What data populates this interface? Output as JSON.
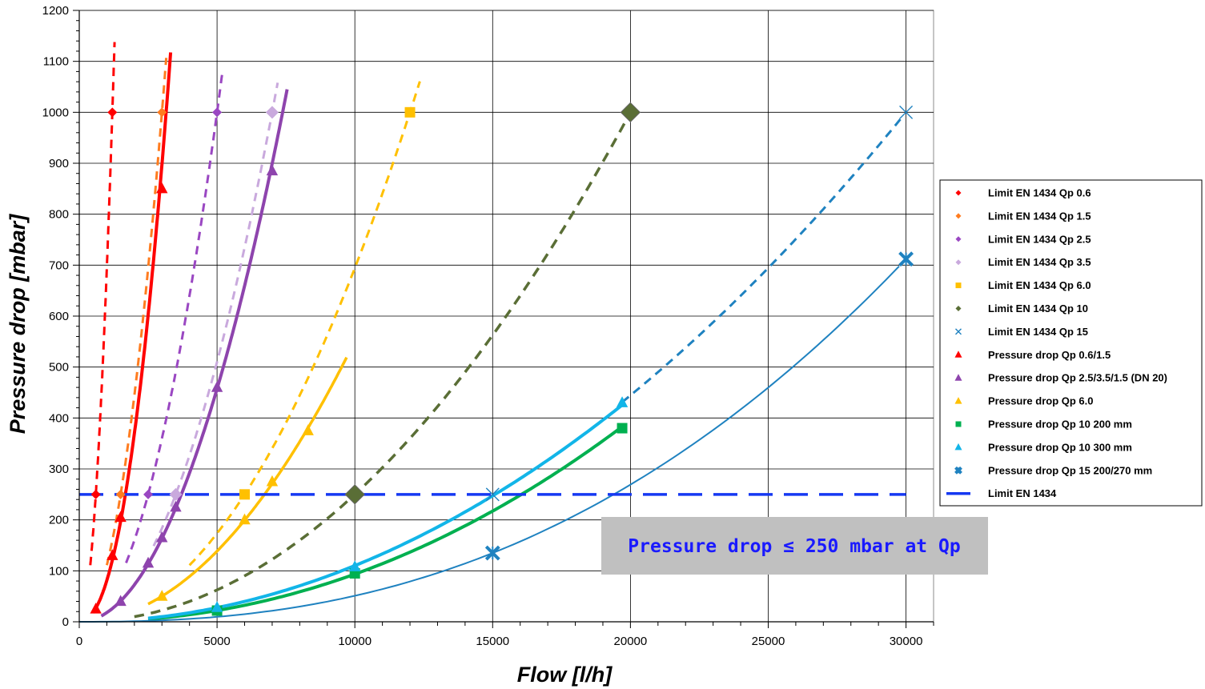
{
  "chart_data": {
    "type": "scatter",
    "xlabel": "Flow [l/h]",
    "ylabel": "Pressure drop [mbar]",
    "xlim": [
      0,
      31000
    ],
    "ylim": [
      0,
      1200
    ],
    "x_ticks": [
      "0",
      "5000",
      "10000",
      "15000",
      "20000",
      "25000",
      "30000"
    ],
    "y_ticks": [
      "0",
      "100",
      "200",
      "300",
      "400",
      "500",
      "600",
      "700",
      "800",
      "900",
      "1000",
      "1100",
      "1200"
    ],
    "grid": true,
    "legend_position": "right",
    "annotation": {
      "text": "Pressure drop ≤ 250 mbar at Qp",
      "color": "#1a1aff",
      "background": "#c0c0c0"
    },
    "series": [
      {
        "name": "Limit EN 1434 Qp 0.6",
        "color": "#ff0000",
        "marker": "diamond",
        "marker_size": 6,
        "points": [
          [
            600,
            250
          ],
          [
            1200,
            1000
          ]
        ],
        "line": {
          "dash": "dashed",
          "width": 3,
          "x_range": [
            400,
            1280
          ],
          "y_max": 1175
        }
      },
      {
        "name": "Limit EN 1434 Qp 1.5",
        "color": "#ff7c1f",
        "marker": "diamond",
        "marker_size": 6,
        "points": [
          [
            1500,
            250
          ],
          [
            3000,
            1000
          ]
        ],
        "line": {
          "dash": "dashed",
          "width": 3,
          "x_range": [
            1000,
            3250
          ],
          "y_max": 1120
        }
      },
      {
        "name": "Limit EN 1434 Qp 2.5",
        "color": "#9a47c2",
        "marker": "diamond",
        "marker_size": 6,
        "points": [
          [
            2500,
            250
          ],
          [
            5000,
            1000
          ]
        ],
        "line": {
          "dash": "dashed",
          "width": 3,
          "x_range": [
            1700,
            5250
          ],
          "y_max": 1085
        }
      },
      {
        "name": "Limit EN 1434 Qp 3.5",
        "color": "#c9a9dd",
        "marker": "diamond",
        "marker_size": 8,
        "points": [
          [
            3500,
            250
          ],
          [
            7000,
            1000
          ]
        ],
        "line": {
          "dash": "dashed",
          "width": 3,
          "x_range": [
            2700,
            7200
          ],
          "y_max": 1060
        }
      },
      {
        "name": "Limit EN 1434 Qp 6.0",
        "color": "#ffc000",
        "marker": "square",
        "marker_size": 13,
        "points": [
          [
            6000,
            250
          ],
          [
            12000,
            1000
          ]
        ],
        "line": {
          "dash": "dashed",
          "width": 3,
          "x_range": [
            4000,
            12500
          ],
          "y_max": 1070
        }
      },
      {
        "name": "Limit EN 1434 Qp 10",
        "color": "#5a6e36",
        "marker": "diamond",
        "marker_size": 12,
        "points": [
          [
            10000,
            250
          ],
          [
            20000,
            1000
          ]
        ],
        "line": {
          "dash": "dashed",
          "width": 3.5,
          "x_range": [
            2000,
            20000
          ],
          "y_max": 1000
        }
      },
      {
        "name": "Limit EN 1434 Qp 15",
        "color": "#1f82c0",
        "marker": "x",
        "marker_size": 8,
        "points": [
          [
            15000,
            250
          ],
          [
            30000,
            1000
          ]
        ],
        "line": {
          "dash": "dashed",
          "width": 3,
          "x_range": [
            19700,
            30000
          ],
          "y_max": 1000
        }
      },
      {
        "name": "Pressure drop Qp 0.6/1.5",
        "color": "#ff0000",
        "marker": "triangle",
        "marker_size": 8,
        "points": [
          [
            600,
            25
          ],
          [
            1200,
            130
          ],
          [
            1500,
            205
          ],
          [
            3000,
            850
          ]
        ],
        "line": {
          "dash": "solid",
          "width": 4,
          "x_range": [
            500,
            3340
          ],
          "y_max": 1135
        }
      },
      {
        "name": "Pressure drop Qp 2.5/3.5/1.5 (DN 20)",
        "color": "#8e44ad",
        "marker": "triangle",
        "marker_size": 8,
        "points": [
          [
            1500,
            40
          ],
          [
            2500,
            115
          ],
          [
            3000,
            165
          ],
          [
            3500,
            225
          ],
          [
            5000,
            460
          ],
          [
            7000,
            885
          ]
        ],
        "line": {
          "dash": "solid",
          "width": 4,
          "x_range": [
            800,
            7600
          ],
          "y_max": 1060
        }
      },
      {
        "name": "Pressure drop Qp 6.0",
        "color": "#ffc000",
        "marker": "triangle",
        "marker_size": 8,
        "points": [
          [
            3000,
            50
          ],
          [
            6000,
            200
          ],
          [
            7000,
            275
          ],
          [
            8300,
            375
          ]
        ],
        "line": {
          "dash": "solid",
          "width": 3.5,
          "x_range": [
            2500,
            9700
          ],
          "y_max": 530
        }
      },
      {
        "name": "Pressure drop Qp 10 200 mm",
        "color": "#00b050",
        "marker": "square",
        "marker_size": 13,
        "points": [
          [
            5000,
            22
          ],
          [
            10000,
            95
          ],
          [
            19700,
            380
          ]
        ],
        "line": {
          "dash": "solid",
          "width": 4,
          "x_range": [
            2500,
            19700
          ],
          "y_max": 380
        }
      },
      {
        "name": "Pressure drop Qp 10 300 mm",
        "color": "#12b5e8",
        "marker": "triangle",
        "marker_size": 8,
        "points": [
          [
            5000,
            28
          ],
          [
            10000,
            108
          ],
          [
            19700,
            430
          ]
        ],
        "line": {
          "dash": "solid",
          "width": 4,
          "x_range": [
            2500,
            19700
          ],
          "y_max": 430
        }
      },
      {
        "name": "Pressure drop Qp 15 200/270 mm",
        "color": "#1f82c0",
        "marker": "x-bold",
        "marker_size": 8,
        "points": [
          [
            15000,
            135
          ],
          [
            30000,
            712
          ]
        ],
        "line": {
          "dash": "solid",
          "width": 2,
          "x_range": [
            0,
            30000
          ],
          "y_max": 712
        }
      },
      {
        "name": "Limit EN 1434",
        "color": "#1538f2",
        "marker": "line",
        "marker_size": 0,
        "points": [],
        "line": {
          "dash": "long-dash",
          "width": 3.5,
          "hline_y": 250,
          "x_range": [
            0,
            30000
          ]
        }
      }
    ]
  }
}
